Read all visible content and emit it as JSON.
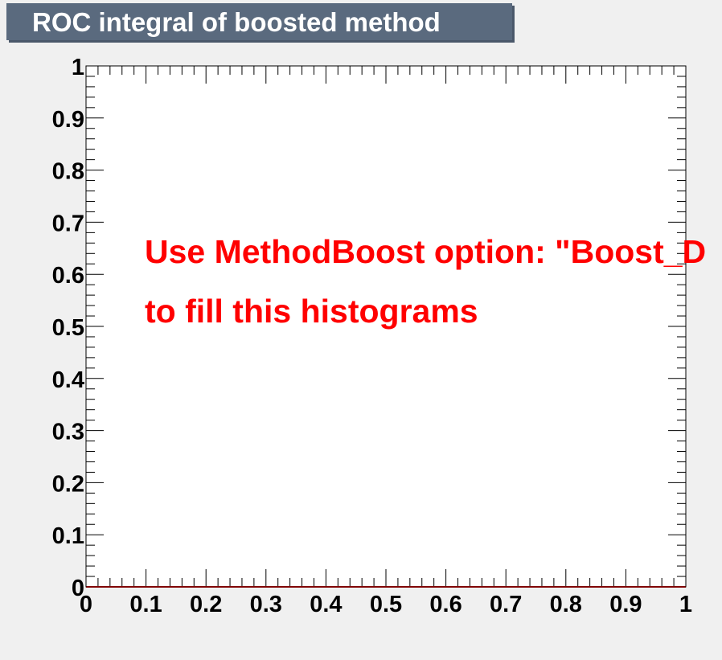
{
  "title": "ROC integral of boosted method",
  "notice": {
    "line1": "Use MethodBoost option: \"Boost_D",
    "line2": "to fill this histograms",
    "color": "#ff0000"
  },
  "colors": {
    "frame_background": "#ffffff",
    "page_background": "#f0f0f0",
    "title_background": "#5a6a7e",
    "title_text": "#ffffff",
    "series_line": "#ff0000"
  },
  "chart_data": {
    "type": "line",
    "title": "ROC integral of boosted method",
    "xlabel": "",
    "ylabel": "",
    "xlim": [
      0,
      1
    ],
    "ylim": [
      0,
      1
    ],
    "x_ticks": [
      "0",
      "0.1",
      "0.2",
      "0.3",
      "0.4",
      "0.5",
      "0.6",
      "0.7",
      "0.8",
      "0.9",
      "1"
    ],
    "y_ticks": [
      "0",
      "0.1",
      "0.2",
      "0.3",
      "0.4",
      "0.5",
      "0.6",
      "0.7",
      "0.8",
      "0.9",
      "1"
    ],
    "grid": false,
    "legend": "none",
    "series": [
      {
        "x": [
          0,
          1
        ],
        "y": [
          0,
          0
        ]
      }
    ]
  }
}
